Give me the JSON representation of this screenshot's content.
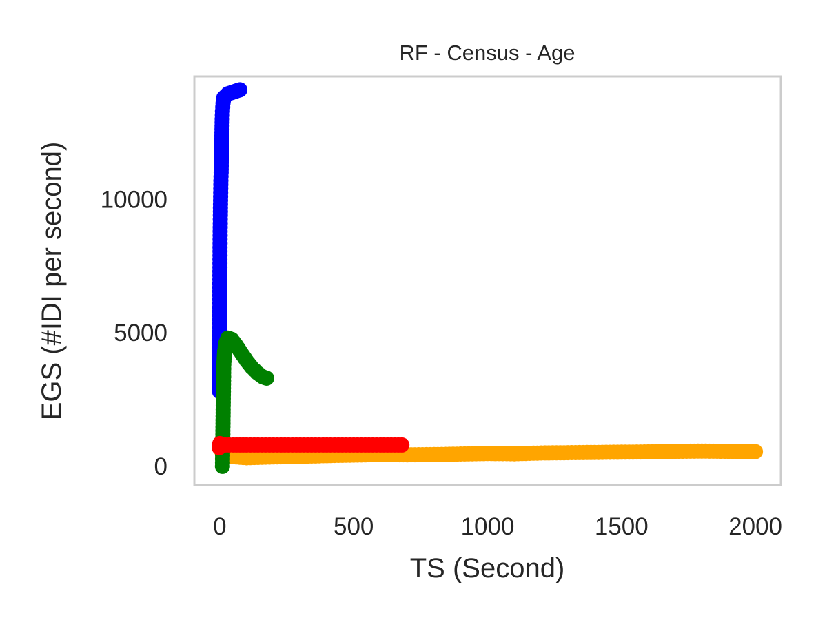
{
  "chart_data": {
    "type": "scatter",
    "title": "RF - Census - Age",
    "xlabel": "TS (Second)",
    "ylabel": "EGS (#IDI  per second)",
    "xlim": [
      -95,
      2095
    ],
    "ylim": [
      -700,
      14600
    ],
    "xticks": [
      0,
      500,
      1000,
      1500,
      2000
    ],
    "yticks": [
      0,
      5000,
      10000
    ],
    "grid": false,
    "legend": "none",
    "series": [
      {
        "color": "#0000ff",
        "points": [
          [
            -1,
            2800
          ],
          [
            0,
            6700
          ],
          [
            1,
            8500
          ],
          [
            2,
            9400
          ],
          [
            3,
            10100
          ],
          [
            4,
            10700
          ],
          [
            5,
            11000
          ],
          [
            6,
            11500
          ],
          [
            7,
            12000
          ],
          [
            8,
            12500
          ],
          [
            9,
            13000
          ],
          [
            10,
            13300
          ],
          [
            12,
            13600
          ],
          [
            15,
            13800
          ],
          [
            20,
            13850
          ],
          [
            30,
            13950
          ],
          [
            45,
            14000
          ],
          [
            60,
            14050
          ],
          [
            75,
            14100
          ]
        ]
      },
      {
        "color": "#ffa500",
        "points": [
          [
            5,
            600
          ],
          [
            50,
            360
          ],
          [
            100,
            320
          ],
          [
            200,
            350
          ],
          [
            300,
            370
          ],
          [
            400,
            400
          ],
          [
            500,
            420
          ],
          [
            600,
            440
          ],
          [
            700,
            430
          ],
          [
            800,
            440
          ],
          [
            900,
            460
          ],
          [
            1000,
            480
          ],
          [
            1100,
            470
          ],
          [
            1200,
            500
          ],
          [
            1300,
            510
          ],
          [
            1400,
            520
          ],
          [
            1500,
            530
          ],
          [
            1600,
            540
          ],
          [
            1700,
            560
          ],
          [
            1800,
            570
          ],
          [
            1900,
            560
          ],
          [
            2000,
            550
          ]
        ]
      },
      {
        "color": "#008000",
        "points": [
          [
            10,
            0
          ],
          [
            11,
            800
          ],
          [
            12,
            1600
          ],
          [
            13,
            2400
          ],
          [
            14,
            3200
          ],
          [
            15,
            3800
          ],
          [
            18,
            4300
          ],
          [
            22,
            4600
          ],
          [
            30,
            4800
          ],
          [
            45,
            4750
          ],
          [
            60,
            4550
          ],
          [
            80,
            4250
          ],
          [
            100,
            3950
          ],
          [
            120,
            3700
          ],
          [
            140,
            3500
          ],
          [
            160,
            3350
          ],
          [
            175,
            3300
          ]
        ]
      },
      {
        "color": "#ff0000",
        "points": [
          [
            -2,
            700
          ],
          [
            0,
            850
          ],
          [
            5,
            800
          ],
          [
            50,
            800
          ],
          [
            100,
            800
          ],
          [
            200,
            800
          ],
          [
            300,
            800
          ],
          [
            400,
            800
          ],
          [
            500,
            800
          ],
          [
            600,
            800
          ],
          [
            680,
            800
          ]
        ]
      }
    ]
  }
}
